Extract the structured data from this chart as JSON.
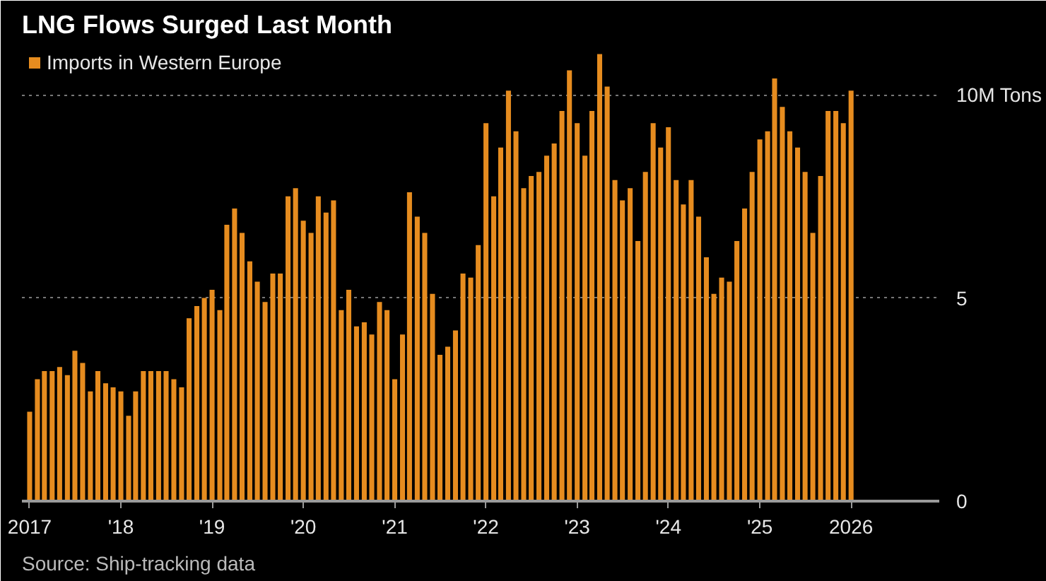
{
  "chart_data": {
    "type": "bar",
    "title": "LNG Flows Surged Last Month",
    "x": [
      "2017-01",
      "2017-02",
      "2017-03",
      "2017-04",
      "2017-05",
      "2017-06",
      "2017-07",
      "2017-08",
      "2017-09",
      "2017-10",
      "2017-11",
      "2017-12",
      "2018-01",
      "2018-02",
      "2018-03",
      "2018-04",
      "2018-05",
      "2018-06",
      "2018-07",
      "2018-08",
      "2018-09",
      "2018-10",
      "2018-11",
      "2018-12",
      "2019-01",
      "2019-02",
      "2019-03",
      "2019-04",
      "2019-05",
      "2019-06",
      "2019-07",
      "2019-08",
      "2019-09",
      "2019-10",
      "2019-11",
      "2019-12",
      "2020-01",
      "2020-02",
      "2020-03",
      "2020-04",
      "2020-05",
      "2020-06",
      "2020-07",
      "2020-08",
      "2020-09",
      "2020-10",
      "2020-11",
      "2020-12",
      "2021-01",
      "2021-02",
      "2021-03",
      "2021-04",
      "2021-05",
      "2021-06",
      "2021-07",
      "2021-08",
      "2021-09",
      "2021-10",
      "2021-11",
      "2021-12",
      "2022-01",
      "2022-02",
      "2022-03",
      "2022-04",
      "2022-05",
      "2022-06",
      "2022-07",
      "2022-08",
      "2022-09",
      "2022-10",
      "2022-11",
      "2022-12",
      "2023-01",
      "2023-02",
      "2023-03",
      "2023-04",
      "2023-05",
      "2023-06",
      "2023-07",
      "2023-08",
      "2023-09",
      "2023-10",
      "2023-11",
      "2023-12",
      "2024-01",
      "2024-02",
      "2024-03",
      "2024-04",
      "2024-05",
      "2024-06",
      "2024-07",
      "2024-08",
      "2024-09",
      "2024-10",
      "2024-11",
      "2024-12",
      "2025-01",
      "2025-02",
      "2025-03",
      "2025-04",
      "2025-05",
      "2025-06",
      "2025-07",
      "2025-08",
      "2025-09",
      "2025-10",
      "2025-11",
      "2025-12",
      "2026-01"
    ],
    "series": [
      {
        "name": "Imports in Western Europe",
        "color": "#e68c1f",
        "values": [
          2.2,
          3.0,
          3.2,
          3.2,
          3.3,
          3.1,
          3.7,
          3.4,
          2.7,
          3.2,
          2.9,
          2.8,
          2.7,
          2.1,
          2.7,
          3.2,
          3.2,
          3.2,
          3.2,
          3.0,
          2.8,
          4.5,
          4.8,
          5.0,
          5.2,
          4.7,
          6.8,
          7.2,
          6.6,
          5.9,
          5.4,
          4.9,
          5.6,
          5.6,
          7.5,
          7.7,
          6.9,
          6.6,
          7.5,
          7.1,
          7.4,
          4.7,
          5.2,
          4.3,
          4.4,
          4.1,
          4.9,
          4.7,
          3.0,
          4.1,
          7.6,
          7.0,
          6.6,
          5.1,
          3.6,
          3.8,
          4.2,
          5.6,
          5.5,
          6.3,
          9.3,
          7.5,
          8.7,
          10.1,
          9.1,
          7.7,
          8.0,
          8.1,
          8.5,
          8.8,
          9.6,
          10.6,
          9.3,
          8.5,
          9.6,
          11.0,
          10.2,
          7.9,
          7.4,
          7.7,
          6.4,
          8.1,
          9.3,
          8.7,
          9.2,
          7.9,
          7.3,
          7.9,
          7.0,
          6.0,
          5.1,
          5.5,
          5.4,
          6.4,
          7.2,
          8.1,
          8.9,
          9.1,
          10.4,
          9.7,
          9.1,
          8.7,
          8.1,
          6.6,
          8.0,
          9.6,
          9.6,
          9.3,
          10.1
        ]
      }
    ],
    "xlim": [
      "2016-12-01",
      "2026-12-20"
    ],
    "xticks": [
      {
        "value": "2017-01",
        "label": "2017"
      },
      {
        "value": "2018-01",
        "label": "'18"
      },
      {
        "value": "2019-01",
        "label": "'19"
      },
      {
        "value": "2020-01",
        "label": "'20"
      },
      {
        "value": "2021-01",
        "label": "'21"
      },
      {
        "value": "2022-01",
        "label": "'22"
      },
      {
        "value": "2023-01",
        "label": "'23"
      },
      {
        "value": "2024-01",
        "label": "'24"
      },
      {
        "value": "2025-01",
        "label": "'25"
      },
      {
        "value": "2026-01",
        "label": "2026"
      }
    ],
    "ylim": [
      0,
      11.2
    ],
    "yticks": [
      0,
      5,
      {
        "value": 10,
        "label": "10M Tons"
      }
    ],
    "grid": "y",
    "legend": "top left",
    "annotations": [
      "Source: Ship-tracking data"
    ]
  }
}
